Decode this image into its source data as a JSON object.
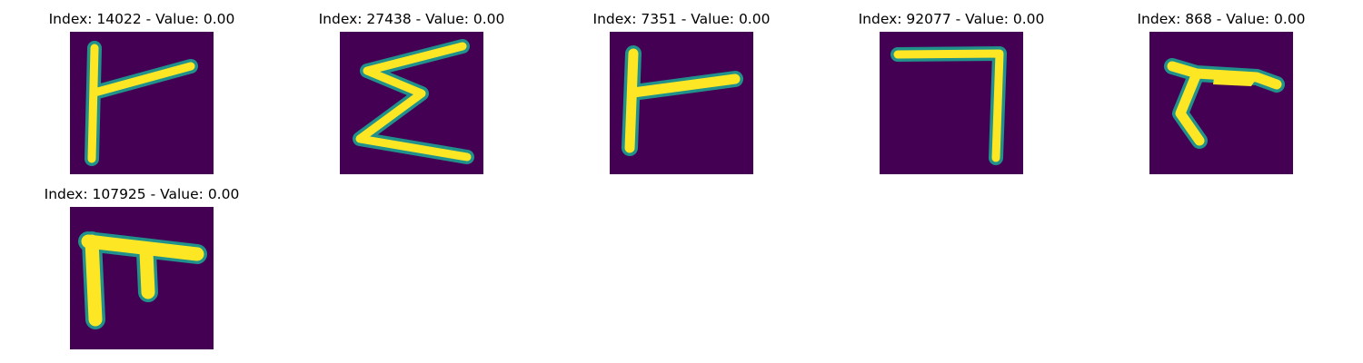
{
  "colors": {
    "background": "#440154",
    "edge": "#21918c",
    "stroke": "#fde725",
    "title_text": "#000000"
  },
  "panels": [
    {
      "title": "Index: 14022 - Value: 0.00"
    },
    {
      "title": "Index: 27438 - Value: 0.00"
    },
    {
      "title": "Index: 7351 - Value: 0.00"
    },
    {
      "title": "Index: 92077 - Value: 0.00"
    },
    {
      "title": "Index: 868 - Value: 0.00"
    },
    {
      "title": "Index: 107925 - Value: 0.00"
    }
  ]
}
